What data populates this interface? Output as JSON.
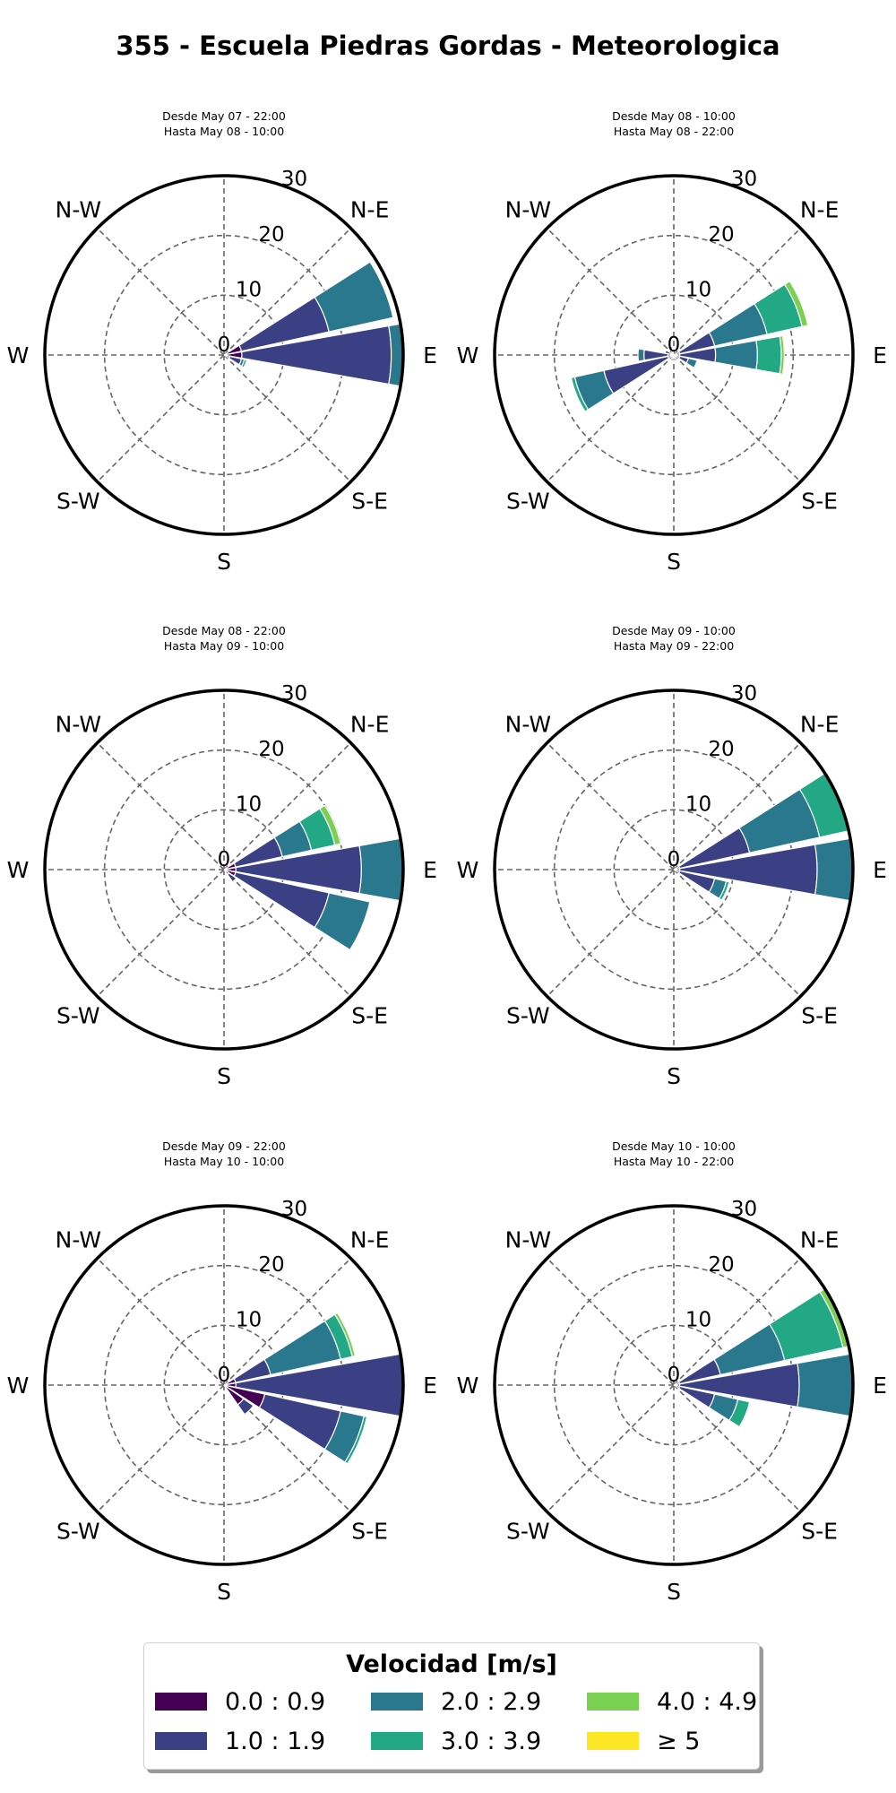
{
  "title": "355 - Escuela Piedras Gordas - Meteorologica",
  "axis": {
    "directions": [
      "N",
      "N-E",
      "E",
      "S-E",
      "S",
      "S-W",
      "W",
      "N-W"
    ],
    "ring_labels": [
      "0",
      "10",
      "20",
      "30"
    ],
    "rmax": 30
  },
  "legend": {
    "title": "Velocidad [m/s]",
    "items": [
      {
        "label": "0.0 : 0.9",
        "color": "#440154"
      },
      {
        "label": "1.0 : 1.9",
        "color": "#3b3f84"
      },
      {
        "label": "2.0 : 2.9",
        "color": "#2a788e"
      },
      {
        "label": "3.0 : 3.9",
        "color": "#22a884"
      },
      {
        "label": "4.0 : 4.9",
        "color": "#7ad151"
      },
      {
        "label": "≥  5",
        "color": "#fde725"
      }
    ]
  },
  "chart_data": [
    {
      "type": "windrose",
      "subtitle_from": "Desde May 07 - 22:00",
      "subtitle_to": "Hasta May 08 - 10:00",
      "sectors": [
        {
          "direction": 67.5,
          "values": [
            3,
            15,
            11,
            0,
            0,
            0
          ]
        },
        {
          "direction": 90,
          "values": [
            3,
            25,
            4,
            0,
            0,
            0
          ]
        },
        {
          "direction": 112.5,
          "values": [
            1,
            2,
            0.5,
            0.4,
            0,
            0
          ]
        }
      ]
    },
    {
      "type": "windrose",
      "subtitle_from": "Desde May 08 - 10:00",
      "subtitle_to": "Hasta May 08 - 22:00",
      "sectors": [
        {
          "direction": 67.5,
          "values": [
            1,
            6,
            9,
            6,
            1,
            0
          ]
        },
        {
          "direction": 90,
          "values": [
            1,
            6,
            7,
            4,
            0.5,
            0
          ]
        },
        {
          "direction": 112.5,
          "values": [
            1,
            1.5,
            1.5,
            0,
            0,
            0
          ]
        },
        {
          "direction": 157.5,
          "values": [
            0.5,
            0.5,
            0,
            0,
            0,
            0
          ]
        },
        {
          "direction": 202.5,
          "values": [
            0.5,
            0.5,
            0,
            0,
            0,
            0
          ]
        },
        {
          "direction": 247.5,
          "values": [
            1,
            11,
            5,
            0.6,
            0,
            0
          ]
        },
        {
          "direction": 270,
          "values": [
            1,
            4,
            1,
            0,
            0,
            0
          ]
        },
        {
          "direction": 292.5,
          "values": [
            0.5,
            1,
            0,
            0,
            0,
            0
          ]
        },
        {
          "direction": 337.5,
          "values": [
            0.5,
            1,
            0,
            0,
            0,
            0
          ]
        }
      ]
    },
    {
      "type": "windrose",
      "subtitle_from": "Desde May 08 - 22:00",
      "subtitle_to": "Hasta May 09 - 10:00",
      "sectors": [
        {
          "direction": 67.5,
          "values": [
            2,
            8,
            5,
            4,
            1,
            0
          ]
        },
        {
          "direction": 90,
          "values": [
            2,
            21,
            7,
            0,
            0,
            0
          ]
        },
        {
          "direction": 112.5,
          "values": [
            2,
            16,
            7,
            0,
            0,
            0
          ]
        },
        {
          "direction": 135,
          "values": [
            1,
            1.5,
            0,
            0,
            0,
            0
          ]
        }
      ]
    },
    {
      "type": "windrose",
      "subtitle_from": "Desde May 09 - 10:00",
      "subtitle_to": "Hasta May 09 - 22:00",
      "sectors": [
        {
          "direction": 67.5,
          "values": [
            1,
            12,
            12,
            5,
            0,
            0
          ]
        },
        {
          "direction": 90,
          "values": [
            1,
            23,
            6,
            0,
            0,
            0
          ]
        },
        {
          "direction": 112.5,
          "values": [
            1,
            6,
            2,
            0.5,
            0,
            0
          ]
        }
      ]
    },
    {
      "type": "windrose",
      "subtitle_from": "Desde May 09 - 22:00",
      "subtitle_to": "Hasta May 10 - 10:00",
      "sectors": [
        {
          "direction": 67.5,
          "values": [
            2,
            6,
            12,
            2,
            0.5,
            0
          ]
        },
        {
          "direction": 90,
          "values": [
            2,
            28,
            0,
            1,
            0,
            0
          ]
        },
        {
          "direction": 112.5,
          "values": [
            7,
            13,
            4,
            0.5,
            0,
            0
          ]
        },
        {
          "direction": 135,
          "values": [
            4,
            2,
            0,
            0,
            0,
            0
          ]
        }
      ]
    },
    {
      "type": "windrose",
      "subtitle_from": "Desde May 10 - 10:00",
      "subtitle_to": "Hasta May 10 - 22:00",
      "sectors": [
        {
          "direction": 67.5,
          "values": [
            1,
            7,
            11,
            10,
            2,
            0
          ]
        },
        {
          "direction": 90,
          "values": [
            1,
            20,
            11,
            0,
            0,
            0
          ]
        },
        {
          "direction": 112.5,
          "values": [
            1,
            6,
            4,
            2,
            0,
            0
          ]
        }
      ]
    }
  ]
}
